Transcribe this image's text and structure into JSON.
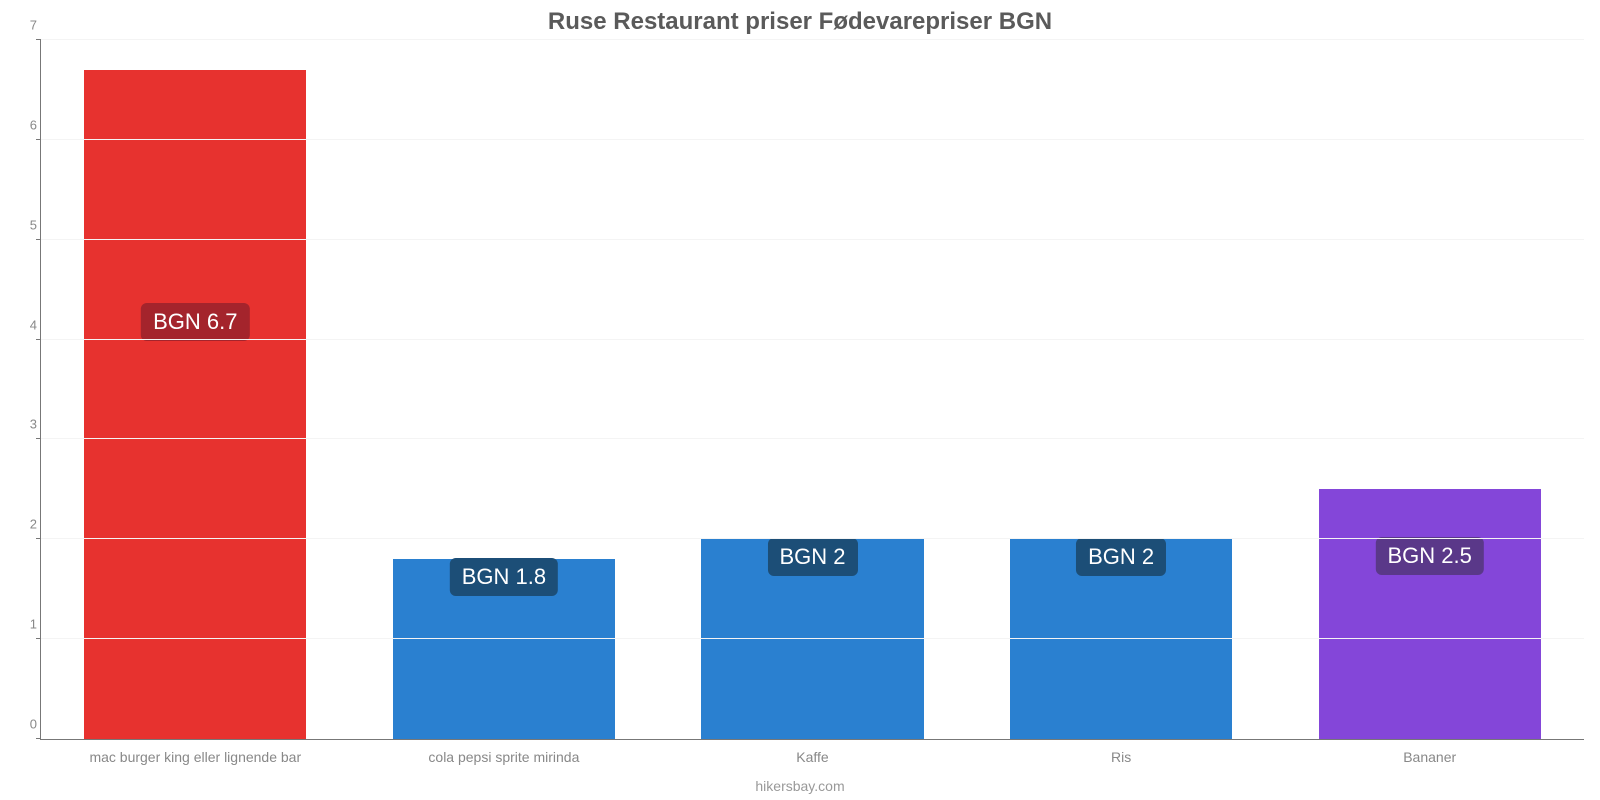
{
  "chart": {
    "type": "bar",
    "title": "Ruse Restaurant priser Fødevarepriser BGN",
    "title_fontsize": 24,
    "title_color": "#5a5a5a",
    "footer": "hikersbay.com",
    "background_color": "#ffffff",
    "grid_color": "#f4f4f4",
    "axis_color": "#777777",
    "tick_label_color": "#888888",
    "tick_label_fontsize": 13,
    "x_label_fontsize": 14,
    "ylim": [
      0,
      7
    ],
    "ytick_step": 1,
    "bar_width": 0.72,
    "value_prefix": "BGN ",
    "value_label_fontsize": 22,
    "value_label_badge_radius": 6,
    "categories": [
      "mac burger king eller lignende bar",
      "cola pepsi sprite mirinda",
      "Kaffe",
      "Ris",
      "Bananer"
    ],
    "values": [
      6.7,
      1.8,
      2,
      2,
      2.5
    ],
    "display_values": [
      "6.7",
      "1.8",
      "2",
      "2",
      "2.5"
    ],
    "bar_colors": [
      "#e7322f",
      "#2a80d0",
      "#2a80d0",
      "#2a80d0",
      "#8446d9"
    ],
    "value_badge_colors": [
      "#a4242c",
      "#1c4e77",
      "#1c4e77",
      "#1c4e77",
      "#5a3889"
    ]
  }
}
